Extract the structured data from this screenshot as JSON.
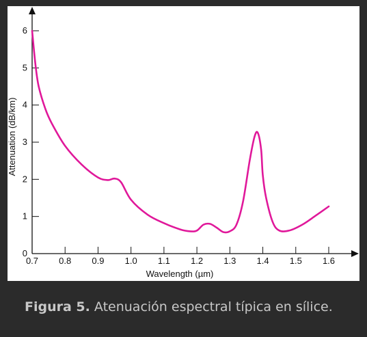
{
  "figure": {
    "caption_label": "Figura 5.",
    "caption_text": " Atenuación espectral típica en sílice."
  },
  "colors": {
    "background": "#2b2b2b",
    "panel": "#ffffff",
    "curve": "#e0189a",
    "axis": "#111111",
    "caption": "#c8c8c8"
  },
  "chart_data": {
    "type": "line",
    "title": "",
    "xlabel": "Wavelength (µm)",
    "ylabel": "Attenuation (dB/km)",
    "xlim": [
      0.7,
      1.6
    ],
    "ylim": [
      0,
      6
    ],
    "xticks": [
      0.7,
      0.8,
      0.9,
      1.0,
      1.1,
      1.2,
      1.3,
      1.4,
      1.5,
      1.6
    ],
    "xtick_labels": [
      "0.7",
      "0.8",
      "0.9",
      "1.0",
      "1.1",
      "1.2",
      "1.3",
      "1.4",
      "1.5",
      "1.6"
    ],
    "yticks": [
      0,
      1,
      2,
      3,
      4,
      5,
      6
    ],
    "ytick_labels": [
      "0",
      "1",
      "2",
      "3",
      "4",
      "5",
      "6"
    ],
    "grid": false,
    "legend": "none",
    "series": [
      {
        "x": [
          0.7,
          0.71,
          0.72,
          0.74,
          0.76,
          0.8,
          0.85,
          0.9,
          0.93,
          0.95,
          0.97,
          1.0,
          1.05,
          1.1,
          1.15,
          1.18,
          1.2,
          1.22,
          1.24,
          1.26,
          1.28,
          1.3,
          1.32,
          1.34,
          1.36,
          1.375,
          1.385,
          1.395,
          1.4,
          1.41,
          1.43,
          1.45,
          1.48,
          1.52,
          1.56,
          1.6
        ],
        "y": [
          6.0,
          5.1,
          4.5,
          3.9,
          3.5,
          2.9,
          2.4,
          2.05,
          1.98,
          2.02,
          1.92,
          1.45,
          1.05,
          0.82,
          0.65,
          0.6,
          0.62,
          0.78,
          0.8,
          0.7,
          0.58,
          0.6,
          0.78,
          1.4,
          2.5,
          3.15,
          3.25,
          2.8,
          2.1,
          1.5,
          0.85,
          0.62,
          0.62,
          0.78,
          1.02,
          1.27
        ]
      }
    ]
  }
}
